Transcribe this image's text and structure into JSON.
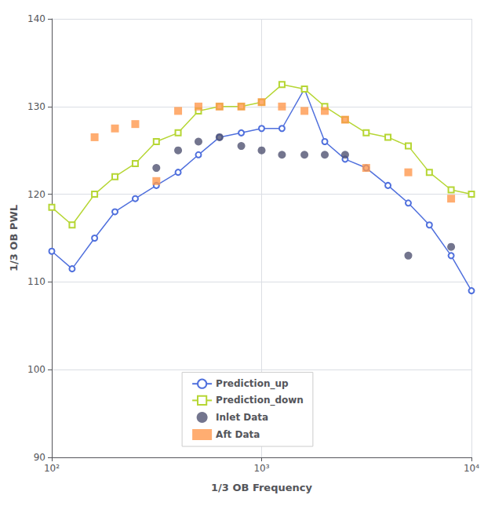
{
  "chart_data": {
    "type": "line",
    "xlabel": "1/3 OB Frequency",
    "ylabel": "1/3 OB PWL",
    "log": "x",
    "xlim": [
      100,
      10000
    ],
    "ylim": [
      90,
      140
    ],
    "xticks": [
      {
        "value": 100,
        "label": "10²"
      },
      {
        "value": 1000,
        "label": "10³"
      },
      {
        "value": 10000,
        "label": "10⁴"
      }
    ],
    "yticks": [
      90,
      100,
      110,
      120,
      130,
      140
    ],
    "grid": true,
    "legend": "lower center",
    "series": [
      {
        "name": "Prediction_up",
        "type": "line",
        "marker": "open_circle",
        "x": [
          100,
          125,
          160,
          200,
          250,
          315,
          400,
          500,
          630,
          800,
          1000,
          1250,
          1600,
          2000,
          2500,
          3150,
          4000,
          5000,
          6300,
          8000,
          10000
        ],
        "values": [
          113.5,
          111.5,
          115.0,
          118.0,
          119.5,
          121.0,
          122.5,
          124.5,
          126.5,
          127.0,
          127.5,
          127.5,
          132.0,
          126.0,
          124.0,
          123.0,
          121.0,
          119.0,
          116.5,
          113.0,
          109.0
        ]
      },
      {
        "name": "Prediction_down",
        "type": "line",
        "marker": "open_square",
        "x": [
          100,
          125,
          160,
          200,
          250,
          315,
          400,
          500,
          630,
          800,
          1000,
          1250,
          1600,
          2000,
          2500,
          3150,
          4000,
          5000,
          6300,
          8000,
          10000
        ],
        "values": [
          118.5,
          116.5,
          120.0,
          122.0,
          123.5,
          126.0,
          127.0,
          129.5,
          130.0,
          130.0,
          130.5,
          132.5,
          132.0,
          130.0,
          128.5,
          127.0,
          126.5,
          125.5,
          122.5,
          120.5,
          120.0
        ]
      },
      {
        "name": "Inlet Data",
        "type": "scatter",
        "marker": "circle",
        "x": [
          315,
          400,
          500,
          630,
          800,
          1000,
          1250,
          1600,
          2000,
          2500,
          5000,
          8000
        ],
        "values": [
          123.0,
          125.0,
          126.0,
          126.5,
          125.5,
          125.0,
          124.5,
          124.5,
          124.5,
          124.5,
          113.0,
          114.0
        ]
      },
      {
        "name": "Aft Data",
        "type": "scatter",
        "marker": "square",
        "x": [
          160,
          200,
          250,
          315,
          400,
          500,
          630,
          800,
          1000,
          1250,
          1600,
          2000,
          2500,
          3150,
          5000,
          8000
        ],
        "values": [
          126.5,
          127.5,
          128.0,
          121.5,
          129.5,
          130.0,
          130.0,
          130.0,
          130.5,
          130.0,
          129.5,
          129.5,
          128.5,
          123.0,
          122.5,
          119.5
        ]
      }
    ]
  }
}
